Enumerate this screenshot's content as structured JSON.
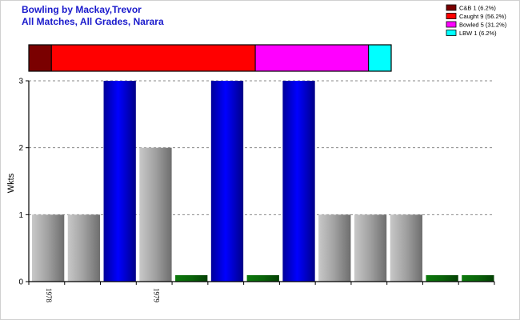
{
  "chart_data": {
    "type": "bar",
    "title_lines": [
      "Bowling by Mackay,Trevor",
      "All Matches, All Grades, Narara"
    ],
    "ylabel": "Wkts",
    "ylim": [
      0,
      3
    ],
    "yticks": [
      0,
      1,
      2,
      3
    ],
    "grid": true,
    "x_labels": [
      {
        "index": 0,
        "text": "1978"
      },
      {
        "index": 3,
        "text": "1979"
      }
    ],
    "values": [
      1,
      1,
      3,
      2,
      0,
      3,
      0,
      3,
      1,
      1,
      1,
      0,
      0
    ],
    "summary_bar": [
      {
        "name": "C&B",
        "count": 1,
        "legend": "C&B 1 (6.2%)",
        "color": "#7a0000"
      },
      {
        "name": "Caught",
        "count": 9,
        "legend": "Caught 9 (56.2%)",
        "color": "#ff0000"
      },
      {
        "name": "Bowled",
        "count": 5,
        "legend": "Bowled 5 (31.2%)",
        "color": "#ff00ff"
      },
      {
        "name": "LBW",
        "count": 1,
        "legend": "LBW 1 (6.2%)",
        "color": "#00ffff"
      }
    ],
    "legend_position": "top-right",
    "colors": {
      "max_bar": "#0000dd",
      "normal_bar": "#a8a8a8",
      "zero_bar": "#0a6a0a"
    }
  }
}
